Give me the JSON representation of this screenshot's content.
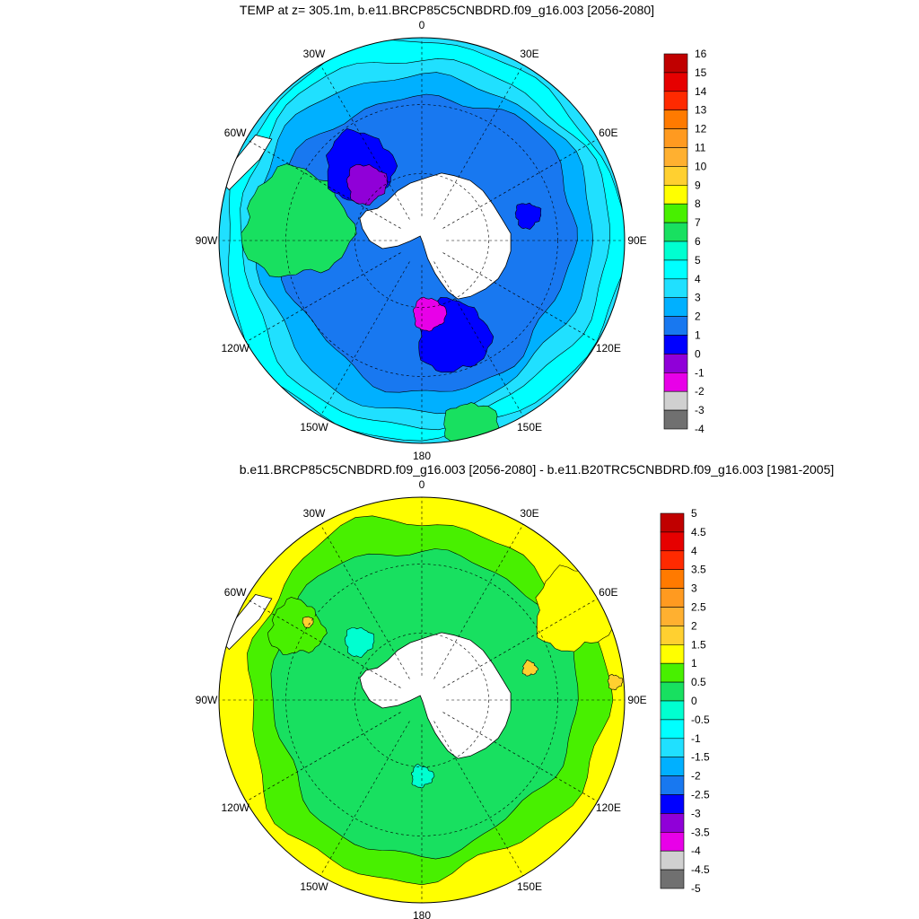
{
  "panel1": {
    "title": "TEMP at z= 305.1m, b.e11.BRCP85C5CNBDRD.f09_g16.003 [2056-2080]",
    "colorbar": {
      "labels": [
        "16",
        "15",
        "14",
        "13",
        "12",
        "11",
        "10",
        "9",
        "8",
        "7",
        "6",
        "5",
        "4",
        "3",
        "2",
        "1",
        "0",
        "-1",
        "-2",
        "-3",
        "-4"
      ],
      "colors": [
        "#c00000",
        "#e60000",
        "#ff2a00",
        "#ff7a00",
        "#ff9a20",
        "#ffb030",
        "#ffd030",
        "#ffff00",
        "#48f000",
        "#18e060",
        "#00ffd0",
        "#00ffff",
        "#20e0ff",
        "#00b0ff",
        "#1878f0",
        "#0000ff",
        "#9000d8",
        "#e800e8",
        "#d0d0d0",
        "#707070"
      ]
    }
  },
  "panel2": {
    "title": "b.e11.BRCP85C5CNBDRD.f09_g16.003 [2056-2080] - b.e11.B20TRC5CNBDRD.f09_g16.003 [1981-2005]",
    "colorbar": {
      "labels": [
        "5",
        "4.5",
        "4",
        "3.5",
        "3",
        "2.5",
        "2",
        "1.5",
        "1",
        "0.5",
        "0",
        "-0.5",
        "-1",
        "-1.5",
        "-2",
        "-2.5",
        "-3",
        "-3.5",
        "-4",
        "-4.5",
        "-5"
      ],
      "colors": [
        "#c00000",
        "#e60000",
        "#ff2a00",
        "#ff7a00",
        "#ff9a20",
        "#ffb030",
        "#ffd030",
        "#ffff00",
        "#48f000",
        "#18e060",
        "#00ffd0",
        "#00ffff",
        "#20e0ff",
        "#00b0ff",
        "#1878f0",
        "#0000ff",
        "#9000d8",
        "#e800e8",
        "#d0d0d0",
        "#707070"
      ]
    }
  },
  "longitude_labels": [
    "0",
    "30E",
    "60E",
    "90E",
    "120E",
    "150E",
    "180",
    "150W",
    "120W",
    "90W",
    "60W",
    "30W"
  ],
  "colors": {
    "land": "#ffffff",
    "coastline": "#000000",
    "gridline": "#000000",
    "p1_outer": "#00ffff",
    "p1_ring_a": "#20e0ff",
    "p1_ring_b": "#00b0ff",
    "p1_inner": "#1878f0",
    "p1_cold": "#0000ff",
    "p1_coldest": "#e800e8",
    "p1_purple": "#9000d8",
    "p1_warm": "#18e060",
    "p2_outer": "#ffff00",
    "p2_mid": "#48f000",
    "p2_inner": "#18e060",
    "p2_cool": "#00ffd0",
    "p2_orange": "#ffd030"
  }
}
